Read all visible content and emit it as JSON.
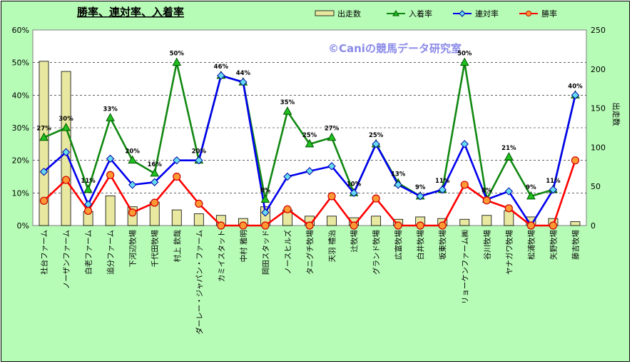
{
  "chart_data": {
    "type": "bar",
    "title": "勝率、連対率、入着率",
    "watermark": "©Caniの競馬データ研究室",
    "ylabel_right": "出走数",
    "ylim_left": [
      0,
      60
    ],
    "ylim_right": [
      0,
      250
    ],
    "yticks_left": [
      "0%",
      "10%",
      "20%",
      "30%",
      "40%",
      "50%",
      "60%"
    ],
    "yticks_right": [
      "0",
      "50",
      "100",
      "150",
      "200",
      "250"
    ],
    "legend_position": "top-right",
    "categories": [
      "社台ファーム",
      "ノーザンファーム",
      "白老ファーム",
      "追分ファーム",
      "下河辺牧場",
      "千代田牧場",
      "村上 欽哉",
      "ダーレー・ジャパン・ファーム",
      "カミイスタット",
      "中村 雅明",
      "岡田スタッド",
      "ノースヒルズ",
      "タニグチ牧場",
      "天羽 禮治",
      "辻牧場",
      "グランド牧場",
      "広富牧場",
      "白井牧場",
      "坂東牧場",
      "リョーケンファーム㈱",
      "谷川牧場",
      "ヤナガワ牧場",
      "松浦牧場",
      "矢野牧場",
      "藤吉牧場"
    ],
    "series": [
      {
        "name": "出走数",
        "type": "bar",
        "axis": "right",
        "color": "#e6e6a0",
        "values": [
          210,
          197,
          18,
          38,
          24,
          30,
          20,
          15,
          13,
          9,
          24,
          20,
          12,
          12,
          10,
          12,
          8,
          11,
          9,
          8,
          13,
          19,
          11,
          9,
          5
        ]
      },
      {
        "name": "入着率",
        "type": "line",
        "axis": "left",
        "color": "#118811",
        "marker": "triangle",
        "values": [
          27,
          30,
          11,
          33,
          20,
          16,
          50,
          20,
          46,
          44,
          8,
          35,
          25,
          27,
          10,
          25,
          13,
          9,
          11,
          50,
          8,
          21,
          9,
          11,
          40
        ],
        "labels": [
          "27%",
          "30%",
          "11%",
          "33%",
          "20%",
          "16%",
          "50%",
          "20%",
          "46%",
          "44%",
          "8%",
          "35%",
          "25%",
          "27%",
          "10%",
          "25%",
          "13%",
          "9%",
          "11%",
          "50%",
          "8%",
          "21%",
          "9%",
          "11%",
          "40%"
        ]
      },
      {
        "name": "連対率",
        "type": "line",
        "axis": "left",
        "color": "#0000ee",
        "marker": "diamond",
        "values": [
          16.5,
          22.5,
          6.5,
          20.5,
          12.5,
          13.3,
          20,
          20,
          46,
          44,
          4,
          15,
          16.7,
          18.2,
          10,
          25,
          12.5,
          9,
          11,
          25,
          8,
          10.5,
          0,
          11,
          40
        ]
      },
      {
        "name": "勝率",
        "type": "line",
        "axis": "left",
        "color": "#ff0000",
        "marker": "circle",
        "values": [
          7.6,
          14,
          4.5,
          15.5,
          4,
          7,
          15,
          6.7,
          0,
          0,
          0,
          5,
          0,
          9,
          0,
          8.3,
          0,
          0,
          0,
          12.5,
          7.7,
          5.3,
          0,
          0,
          20
        ]
      }
    ]
  }
}
